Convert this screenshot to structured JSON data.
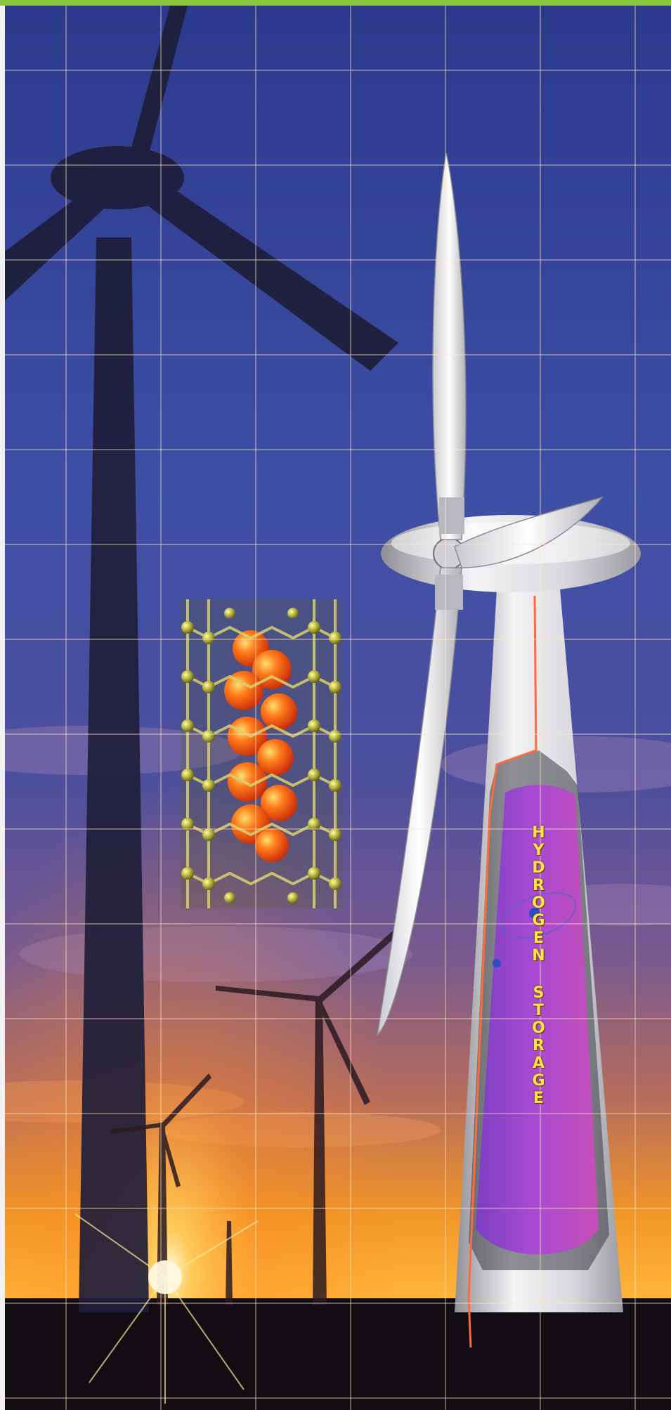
{
  "vertical_label": {
    "words": [
      "HYDROGEN",
      "STORAGE"
    ]
  },
  "colors": {
    "accent_bar": "#8cc63f",
    "label": "#ffe34d",
    "tank_fill": "#a64ad2",
    "sky_top": "#2c3a8c",
    "sunset": "#ff9a1e"
  }
}
